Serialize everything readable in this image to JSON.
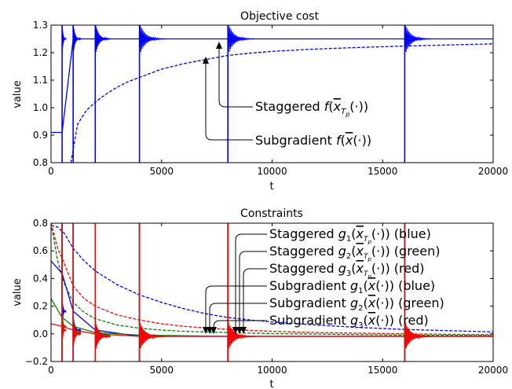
{
  "chart_data": [
    {
      "type": "line",
      "title": "Objective cost",
      "xlabel": "t",
      "ylabel": "value",
      "xlim": [
        0,
        20000
      ],
      "ylim": [
        0.8,
        1.3
      ],
      "xticks": [
        "0",
        "5000",
        "10000",
        "15000",
        "20000"
      ],
      "yticks": [
        "0.8",
        "0.9",
        "1.0",
        "1.1",
        "1.2",
        "1.3"
      ],
      "legend_position": "inline annotations, center",
      "annotations": [
        {
          "id": "stag",
          "text": "Staggered f(x̄_{T_p}(·))",
          "display": "Staggered"
        },
        {
          "id": "sub",
          "text": "Subgradient f(x̄(·))",
          "display": "Subgradient"
        }
      ],
      "series": [
        {
          "id": "staggered",
          "color": "#0000ff",
          "style": "solid",
          "restarts": [
            500,
            1000,
            2000,
            4000,
            8000,
            16000
          ],
          "x": [
            0,
            500,
            1000,
            2000,
            4000,
            8000,
            16000,
            20000
          ],
          "y": [
            0.91,
            0.91,
            1.25,
            1.25,
            1.25,
            1.25,
            1.25,
            1.25
          ]
        },
        {
          "id": "subgradient",
          "color": "#0000ff",
          "style": "dashed",
          "x": [
            900,
            1200,
            1600,
            2000,
            2500,
            3000,
            3500,
            4000,
            5000,
            6000,
            7000,
            8000,
            9000,
            10000,
            12000,
            14000,
            16000,
            18000,
            20000
          ],
          "y": [
            0.8,
            0.94,
            0.99,
            1.02,
            1.05,
            1.075,
            1.095,
            1.11,
            1.14,
            1.16,
            1.175,
            1.19,
            1.198,
            1.205,
            1.213,
            1.219,
            1.224,
            1.228,
            1.232
          ]
        }
      ]
    },
    {
      "type": "line",
      "title": "Constraints",
      "xlabel": "t",
      "ylabel": "value",
      "xlim": [
        0,
        20000
      ],
      "ylim": [
        -0.2,
        0.9
      ],
      "xticks": [
        "0",
        "5000",
        "10000",
        "15000",
        "20000"
      ],
      "yticks": [
        "−0.2",
        "0.0",
        "0.2",
        "0.4",
        "0.6",
        "0.8"
      ],
      "legend_position": "top-right, inline annotations",
      "annotations": [
        {
          "text": "Staggered g₁(x̄_{T_p}(·)) (blue)",
          "lead": "Staggered",
          "func": "g",
          "sub": "1",
          "tail": "(blue)"
        },
        {
          "text": "Staggered g₂(x̄_{T_p}(·)) (green)",
          "lead": "Staggered",
          "func": "g",
          "sub": "2",
          "tail": "(green)"
        },
        {
          "text": "Staggered g₃(x̄_{T_p}(·)) (red)",
          "lead": "Staggered",
          "func": "g",
          "sub": "3",
          "tail": "(red)"
        },
        {
          "text": "Subgradient g₁(x̄(·)) (blue)",
          "lead": "Subgradient",
          "func": "g",
          "sub": "1",
          "tail": "(blue)"
        },
        {
          "text": "Subgradient g₂(x̄(·)) (green)",
          "lead": "Subgradient",
          "func": "g",
          "sub": "2",
          "tail": "(green)"
        },
        {
          "text": "Subgradient g₃(x̄(·)) (red)",
          "lead": "Subgradient",
          "func": "g",
          "sub": "3",
          "tail": "(red)"
        }
      ],
      "series": [
        {
          "id": "sub_g1",
          "color": "#0000ff",
          "style": "dashed",
          "x": [
            0,
            300,
            600,
            1000,
            1500,
            2000,
            3000,
            4000,
            5000,
            6000,
            7000,
            8000,
            9000,
            10000,
            12000,
            14000,
            16000,
            18000,
            20000
          ],
          "y": [
            0.88,
            0.87,
            0.82,
            0.7,
            0.6,
            0.52,
            0.41,
            0.33,
            0.27,
            0.22,
            0.18,
            0.15,
            0.13,
            0.115,
            0.09,
            0.07,
            0.055,
            0.045,
            0.035
          ]
        },
        {
          "id": "sub_g2",
          "color": "#008000",
          "style": "dashed",
          "x": [
            0,
            300,
            600,
            1000,
            1500,
            2000,
            3000,
            4000,
            5000,
            6000,
            8000,
            10000,
            12000,
            14000,
            16000,
            18000,
            20000
          ],
          "y": [
            0.9,
            0.6,
            0.42,
            0.27,
            0.19,
            0.14,
            0.09,
            0.065,
            0.05,
            0.04,
            0.03,
            0.022,
            0.018,
            0.014,
            0.01,
            0.008,
            0.006
          ]
        },
        {
          "id": "sub_g3",
          "color": "#ff0000",
          "style": "dashed",
          "x": [
            0,
            300,
            600,
            1000,
            1500,
            2000,
            3000,
            4000,
            5000,
            6000,
            8000,
            10000,
            12000,
            14000,
            16000,
            18000,
            20000
          ],
          "y": [
            0.9,
            0.7,
            0.58,
            0.4,
            0.3,
            0.24,
            0.17,
            0.13,
            0.1,
            0.08,
            0.055,
            0.04,
            0.03,
            0.025,
            0.02,
            0.016,
            0.014
          ]
        },
        {
          "id": "stag_g1",
          "color": "#0000ff",
          "style": "solid",
          "restarts": [
            500,
            1000,
            2000,
            4000,
            8000,
            16000
          ],
          "x": [
            0,
            500,
            1000,
            2000,
            4000,
            8000,
            16000,
            20000
          ],
          "y": [
            0.6,
            0.5,
            0.2,
            0.05,
            0.0,
            0.0,
            0.0,
            0.0
          ]
        },
        {
          "id": "stag_g2",
          "color": "#008000",
          "style": "solid",
          "restarts": [
            500,
            1000,
            2000,
            4000,
            8000,
            16000
          ],
          "x": [
            0,
            500,
            1000,
            2000,
            4000,
            8000,
            16000,
            20000
          ],
          "y": [
            0.3,
            0.15,
            0.08,
            0.03,
            0.01,
            0.0,
            0.0,
            0.0
          ]
        },
        {
          "id": "stag_g3",
          "color": "#ff0000",
          "style": "solid",
          "restarts": [
            500,
            1000,
            2000,
            4000,
            8000,
            16000
          ],
          "x": [
            0,
            500,
            1000,
            2000,
            4000,
            8000,
            16000,
            20000
          ],
          "y": [
            0.1,
            0.08,
            0.05,
            0.02,
            0.0,
            0.0,
            0.0,
            0.0
          ]
        }
      ]
    }
  ]
}
